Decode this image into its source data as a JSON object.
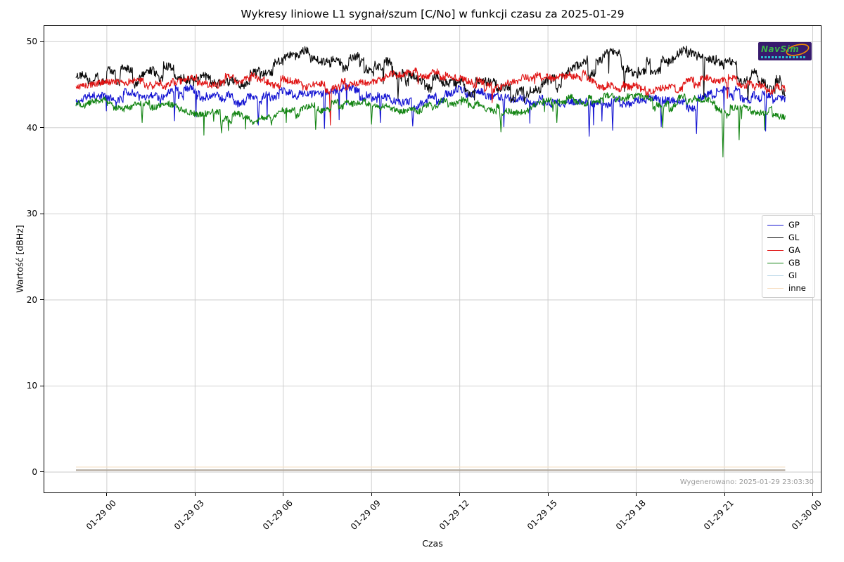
{
  "chart_data": {
    "type": "line",
    "title": "Wykresy liniowe L1 sygnał/szum [C/No] w funkcji czasu za 2025-01-29",
    "xlabel": "Czas",
    "ylabel": "Wartość [dBHz]",
    "grid": true,
    "legend_position": "center right",
    "x_axis": {
      "tick_labels": [
        "01-29 00",
        "01-29 03",
        "01-29 06",
        "01-29 09",
        "01-29 12",
        "01-29 15",
        "01-29 18",
        "01-29 21",
        "01-30 00"
      ],
      "tick_minutes": [
        0,
        180,
        360,
        540,
        720,
        900,
        1080,
        1260,
        1440
      ],
      "range_minutes": [
        -129,
        1458
      ]
    },
    "y_axis": {
      "ticks": [
        0,
        10,
        20,
        30,
        40,
        50
      ],
      "range": [
        -2.45,
        51.9
      ]
    },
    "series": [
      {
        "name": "GP",
        "color": "#1414d2",
        "seed": 11,
        "t_start": -63,
        "t_end": 1384,
        "level_amp": 0.6,
        "jitter": 0.42,
        "spike_prob": 0.006,
        "spike_extra": 2.2,
        "keypoints": [
          [
            -1.1,
            42.9
          ],
          [
            0,
            44.0
          ],
          [
            1,
            43.4
          ],
          [
            2,
            44.0
          ],
          [
            3,
            44.2
          ],
          [
            4,
            43.4
          ],
          [
            5,
            43.0
          ],
          [
            6,
            43.9
          ],
          [
            7,
            44.2
          ],
          [
            8,
            44.4
          ],
          [
            9,
            43.4
          ],
          [
            10,
            42.6
          ],
          [
            11,
            43.4
          ],
          [
            12,
            44.0
          ],
          [
            13,
            43.7
          ],
          [
            14,
            43.0
          ],
          [
            15,
            43.3
          ],
          [
            16,
            43.1
          ],
          [
            17,
            43.0
          ],
          [
            18,
            43.2
          ],
          [
            19,
            43.0
          ],
          [
            20,
            42.8
          ],
          [
            21,
            44.3
          ],
          [
            22,
            43.7
          ],
          [
            23.1,
            42.9
          ]
        ],
        "spikes": [
          [
            2.3,
            40.8
          ],
          [
            5.15,
            40.3
          ],
          [
            7.4,
            39.9
          ],
          [
            9.3,
            40.6
          ],
          [
            10.4,
            40.2
          ],
          [
            13.5,
            40.1
          ],
          [
            16.4,
            39.0
          ],
          [
            17.2,
            39.7
          ],
          [
            18.85,
            40.1
          ],
          [
            20.05,
            39.3
          ],
          [
            22.4,
            39.6
          ]
        ]
      },
      {
        "name": "GL",
        "color": "#0a0a0a",
        "seed": 22,
        "t_start": -63,
        "t_end": 1384,
        "level_amp": 1.0,
        "jitter": 0.5,
        "spike_prob": 0.004,
        "spike_extra": 1.6,
        "keypoints": [
          [
            -1.1,
            45.8
          ],
          [
            0,
            46.2
          ],
          [
            1,
            45.9
          ],
          [
            2,
            46.3
          ],
          [
            3,
            45.6
          ],
          [
            4,
            45.3
          ],
          [
            5,
            45.9
          ],
          [
            6,
            47.3
          ],
          [
            6.8,
            48.2
          ],
          [
            8,
            46.8
          ],
          [
            8.8,
            47.8
          ],
          [
            10,
            46.2
          ],
          [
            11,
            45.4
          ],
          [
            12,
            44.6
          ],
          [
            13,
            44.4
          ],
          [
            14,
            44.2
          ],
          [
            15,
            44.6
          ],
          [
            16,
            46.3
          ],
          [
            17,
            48.2
          ],
          [
            18,
            47.2
          ],
          [
            19,
            47.0
          ],
          [
            19.8,
            48.3
          ],
          [
            20.6,
            48.6
          ],
          [
            21.3,
            46.6
          ],
          [
            22,
            45.9
          ],
          [
            23.1,
            44.9
          ]
        ],
        "spikes": [
          [
            9.9,
            43.4
          ],
          [
            12.5,
            43.2
          ],
          [
            14.2,
            42.9
          ],
          [
            17.6,
            44.2
          ],
          [
            20.3,
            43.6
          ],
          [
            21.8,
            43.2
          ]
        ]
      },
      {
        "name": "GA",
        "color": "#e01414",
        "seed": 33,
        "t_start": -63,
        "t_end": 1384,
        "level_amp": 0.55,
        "jitter": 0.38,
        "spike_prob": 0.003,
        "spike_extra": 1.2,
        "keypoints": [
          [
            -1.1,
            44.6
          ],
          [
            0,
            45.4
          ],
          [
            1,
            45.1
          ],
          [
            2,
            45.0
          ],
          [
            3,
            45.3
          ],
          [
            4,
            45.4
          ],
          [
            5,
            45.8
          ],
          [
            6,
            45.3
          ],
          [
            7,
            44.6
          ],
          [
            8,
            44.9
          ],
          [
            9,
            45.4
          ],
          [
            10,
            46.2
          ],
          [
            11,
            46.3
          ],
          [
            12,
            45.9
          ],
          [
            13,
            44.8
          ],
          [
            14,
            45.3
          ],
          [
            15,
            46.2
          ],
          [
            16,
            46.4
          ],
          [
            17,
            44.9
          ],
          [
            18,
            44.4
          ],
          [
            19,
            44.3
          ],
          [
            20,
            45.2
          ],
          [
            21,
            45.6
          ],
          [
            22,
            44.9
          ],
          [
            23.1,
            44.4
          ]
        ],
        "spikes": [
          [
            7.6,
            40.3
          ],
          [
            13.1,
            42.9
          ],
          [
            21.1,
            43.4
          ]
        ]
      },
      {
        "name": "GB",
        "color": "#128412",
        "seed": 44,
        "t_start": -63,
        "t_end": 1384,
        "level_amp": 0.55,
        "jitter": 0.35,
        "spike_prob": 0.006,
        "spike_extra": 2.0,
        "keypoints": [
          [
            -1.1,
            42.4
          ],
          [
            0,
            42.9
          ],
          [
            1,
            42.2
          ],
          [
            2,
            42.7
          ],
          [
            3,
            41.7
          ],
          [
            4,
            41.2
          ],
          [
            5,
            41.0
          ],
          [
            6,
            41.7
          ],
          [
            7,
            42.2
          ],
          [
            8,
            42.9
          ],
          [
            9,
            43.1
          ],
          [
            10,
            42.0
          ],
          [
            11,
            42.3
          ],
          [
            12,
            43.2
          ],
          [
            13,
            42.4
          ],
          [
            14,
            41.6
          ],
          [
            15,
            43.2
          ],
          [
            16,
            43.4
          ],
          [
            17,
            43.2
          ],
          [
            18,
            43.4
          ],
          [
            19,
            42.3
          ],
          [
            20,
            43.8
          ],
          [
            21,
            41.9
          ],
          [
            22,
            42.0
          ],
          [
            23.1,
            41.7
          ]
        ],
        "spikes": [
          [
            1.2,
            40.6
          ],
          [
            3.9,
            39.4
          ],
          [
            5.6,
            40.3
          ],
          [
            7.1,
            39.8
          ],
          [
            9.0,
            40.4
          ],
          [
            13.4,
            39.5
          ],
          [
            15.3,
            40.6
          ],
          [
            18.9,
            40.0
          ],
          [
            20.95,
            36.6
          ],
          [
            21.5,
            38.6
          ]
        ]
      }
    ],
    "flat_series": [
      {
        "name": "GI",
        "value": 0.25,
        "color": "#cfe0ec",
        "width": 1.2,
        "t_start": -63,
        "t_end": 1384
      },
      {
        "name": "inne-overlap",
        "value": 0.22,
        "color": "#b2a89b",
        "width": 2.0,
        "t_start": -63,
        "t_end": 1384
      },
      {
        "name": "inne",
        "value": 0.58,
        "color": "#f5e2c8",
        "width": 1.2,
        "t_start": -63,
        "t_end": 1384
      }
    ]
  },
  "legend": {
    "entries": [
      {
        "label": "GP",
        "color": "#1414d2"
      },
      {
        "label": "GL",
        "color": "#0a0a0a"
      },
      {
        "label": "GA",
        "color": "#e01414"
      },
      {
        "label": "GB",
        "color": "#128412"
      },
      {
        "label": "GI",
        "color": "#b5d4e6"
      },
      {
        "label": "inne",
        "color": "#f6ddc0"
      }
    ]
  },
  "logo": {
    "text": "NavSim",
    "bg": "#371a6d",
    "text_color": "#3cb54a",
    "swoosh_color": "#f08c00",
    "sub_color": "#2ac0d0"
  },
  "footer": {
    "generated": "Wygenerowano: 2025-01-29 23:03:30"
  }
}
